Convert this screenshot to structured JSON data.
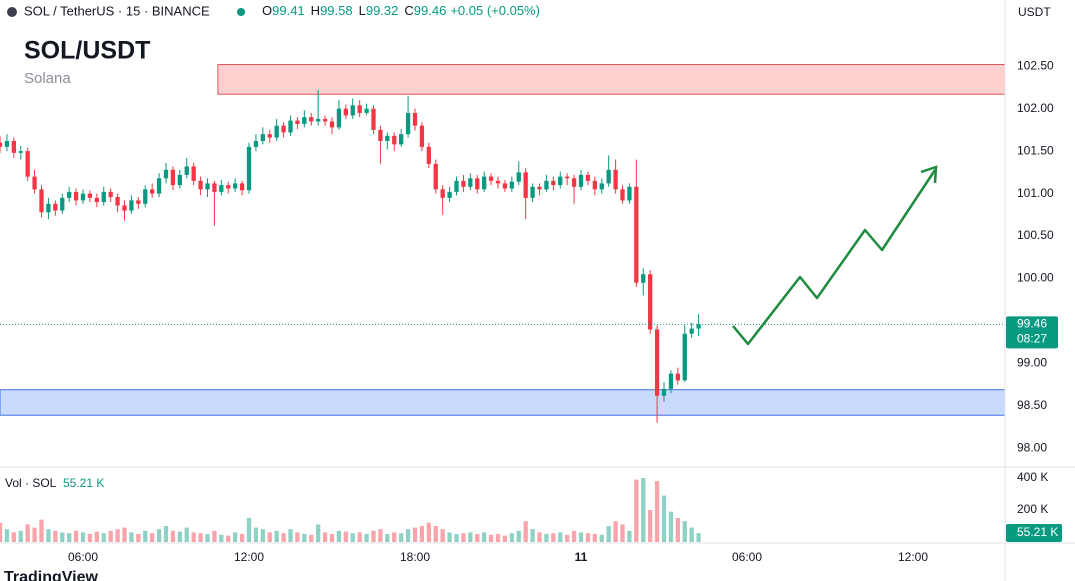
{
  "header": {
    "symbol": "SOL / TetherUS · 15 · BINANCE",
    "ohlc": [
      {
        "label": "O",
        "value": 99.41
      },
      {
        "label": "H",
        "value": 99.58
      },
      {
        "label": "L",
        "value": 99.32
      },
      {
        "label": "C",
        "value": 99.46
      }
    ],
    "change": "+0.05 (+0.05%)"
  },
  "chart_data": {
    "type": "candlestick",
    "title": "SOL/USDT",
    "subtitle": "Solana",
    "currency": "USDT",
    "up_color": "#089981",
    "down_color": "#f23645",
    "grid": false,
    "xlim": [
      0,
      145.3
    ],
    "xticks": [
      {
        "value": 12,
        "label": "06:00"
      },
      {
        "value": 36,
        "label": "12:00"
      },
      {
        "value": 60,
        "label": "18:00"
      },
      {
        "value": 84,
        "label": "11"
      },
      {
        "value": 108,
        "label": "06:00"
      },
      {
        "value": 132,
        "label": "12:00"
      }
    ],
    "ylim": [
      97.78,
      103.28
    ],
    "yticks": [
      {
        "value": 98,
        "label": "98.00"
      },
      {
        "value": 98.5,
        "label": "98.50"
      },
      {
        "value": 99,
        "label": "99.00"
      },
      {
        "value": 100,
        "label": "100.00"
      },
      {
        "value": 100.5,
        "label": "100.50"
      },
      {
        "value": 101,
        "label": "101.00"
      },
      {
        "value": 101.5,
        "label": "101.50"
      },
      {
        "value": 102,
        "label": "102.00"
      },
      {
        "value": 102.5,
        "label": "102.50"
      }
    ],
    "last_price": {
      "value": 99.46,
      "countdown": "08:27"
    },
    "zones": [
      {
        "from": 102.17,
        "to": 102.52,
        "start": 31.5,
        "fill": "#ffd0d0",
        "stroke": "#e05560"
      },
      {
        "from": 98.39,
        "to": 98.69,
        "start": 0,
        "fill": "#c8dbff",
        "stroke": "#3f6fe0"
      }
    ],
    "candles": [
      [
        101.6,
        101.68,
        101.48,
        101.55
      ],
      [
        101.55,
        101.7,
        101.5,
        101.62
      ],
      [
        101.62,
        101.66,
        101.42,
        101.48
      ],
      [
        101.48,
        101.56,
        101.4,
        101.5
      ],
      [
        101.5,
        101.54,
        101.15,
        101.2
      ],
      [
        101.2,
        101.28,
        101.0,
        101.05
      ],
      [
        101.05,
        101.1,
        100.72,
        100.78
      ],
      [
        100.78,
        100.95,
        100.7,
        100.88
      ],
      [
        100.88,
        100.92,
        100.74,
        100.8
      ],
      [
        100.8,
        101.0,
        100.76,
        100.95
      ],
      [
        100.95,
        101.08,
        100.9,
        101.02
      ],
      [
        101.02,
        101.06,
        100.86,
        100.92
      ],
      [
        100.92,
        101.05,
        100.88,
        101.0
      ],
      [
        101.0,
        101.04,
        100.9,
        100.95
      ],
      [
        100.95,
        101.0,
        100.84,
        100.9
      ],
      [
        100.9,
        101.08,
        100.86,
        101.02
      ],
      [
        101.02,
        101.06,
        100.9,
        100.96
      ],
      [
        100.96,
        101.0,
        100.78,
        100.86
      ],
      [
        100.86,
        100.92,
        100.68,
        100.8
      ],
      [
        100.8,
        100.98,
        100.76,
        100.92
      ],
      [
        100.92,
        100.96,
        100.82,
        100.88
      ],
      [
        100.88,
        101.1,
        100.84,
        101.05
      ],
      [
        101.05,
        101.12,
        100.95,
        101.0
      ],
      [
        101.0,
        101.24,
        100.96,
        101.18
      ],
      [
        101.18,
        101.36,
        101.12,
        101.28
      ],
      [
        101.28,
        101.32,
        101.04,
        101.1
      ],
      [
        101.1,
        101.28,
        101.06,
        101.22
      ],
      [
        101.22,
        101.42,
        101.18,
        101.32
      ],
      [
        101.32,
        101.36,
        101.1,
        101.15
      ],
      [
        101.15,
        101.2,
        100.98,
        101.05
      ],
      [
        101.05,
        101.18,
        100.96,
        101.12
      ],
      [
        101.12,
        101.15,
        100.62,
        101.02
      ],
      [
        101.02,
        101.16,
        100.98,
        101.1
      ],
      [
        101.1,
        101.14,
        101.0,
        101.06
      ],
      [
        101.06,
        101.18,
        101.02,
        101.12
      ],
      [
        101.12,
        101.15,
        100.98,
        101.04
      ],
      [
        101.04,
        101.6,
        101.0,
        101.55
      ],
      [
        101.55,
        101.7,
        101.5,
        101.62
      ],
      [
        101.62,
        101.78,
        101.58,
        101.7
      ],
      [
        101.7,
        101.75,
        101.6,
        101.66
      ],
      [
        101.66,
        101.88,
        101.62,
        101.8
      ],
      [
        101.8,
        101.84,
        101.66,
        101.72
      ],
      [
        101.72,
        101.92,
        101.68,
        101.86
      ],
      [
        101.86,
        101.9,
        101.76,
        101.82
      ],
      [
        101.82,
        101.98,
        101.78,
        101.9
      ],
      [
        101.9,
        101.95,
        101.8,
        101.85
      ],
      [
        101.85,
        102.22,
        101.8,
        101.88
      ],
      [
        101.88,
        101.92,
        101.8,
        101.85
      ],
      [
        101.85,
        101.9,
        101.7,
        101.78
      ],
      [
        101.78,
        102.1,
        101.75,
        102.0
      ],
      [
        102.0,
        102.05,
        101.88,
        101.92
      ],
      [
        101.92,
        102.12,
        101.88,
        102.04
      ],
      [
        102.04,
        102.1,
        101.9,
        101.95
      ],
      [
        101.95,
        102.06,
        101.92,
        102.0
      ],
      [
        102.0,
        102.04,
        101.7,
        101.75
      ],
      [
        101.75,
        101.8,
        101.35,
        101.62
      ],
      [
        101.62,
        101.72,
        101.52,
        101.68
      ],
      [
        101.68,
        101.72,
        101.5,
        101.58
      ],
      [
        101.58,
        101.76,
        101.55,
        101.7
      ],
      [
        101.7,
        102.15,
        101.66,
        101.95
      ],
      [
        101.95,
        102.0,
        101.74,
        101.8
      ],
      [
        101.8,
        101.84,
        101.5,
        101.55
      ],
      [
        101.55,
        101.6,
        101.3,
        101.35
      ],
      [
        101.35,
        101.4,
        101.0,
        101.05
      ],
      [
        101.05,
        101.1,
        100.75,
        100.95
      ],
      [
        100.95,
        101.08,
        100.9,
        101.02
      ],
      [
        101.02,
        101.2,
        100.98,
        101.15
      ],
      [
        101.15,
        101.22,
        101.02,
        101.08
      ],
      [
        101.08,
        101.24,
        101.04,
        101.18
      ],
      [
        101.18,
        101.22,
        101.0,
        101.05
      ],
      [
        101.05,
        101.26,
        101.02,
        101.2
      ],
      [
        101.2,
        101.24,
        101.1,
        101.15
      ],
      [
        101.15,
        101.2,
        101.06,
        101.12
      ],
      [
        101.12,
        101.16,
        101.02,
        101.06
      ],
      [
        101.06,
        101.2,
        101.02,
        101.14
      ],
      [
        101.14,
        101.38,
        101.1,
        101.25
      ],
      [
        101.25,
        101.3,
        100.7,
        100.95
      ],
      [
        100.95,
        101.12,
        100.9,
        101.08
      ],
      [
        101.08,
        101.12,
        100.98,
        101.05
      ],
      [
        101.05,
        101.22,
        101.02,
        101.15
      ],
      [
        101.15,
        101.2,
        101.04,
        101.1
      ],
      [
        101.1,
        101.26,
        101.06,
        101.2
      ],
      [
        101.2,
        101.24,
        101.1,
        101.18
      ],
      [
        101.18,
        101.22,
        100.88,
        101.08
      ],
      [
        101.08,
        101.28,
        101.04,
        101.22
      ],
      [
        101.22,
        101.26,
        101.1,
        101.15
      ],
      [
        101.15,
        101.2,
        100.98,
        101.05
      ],
      [
        101.05,
        101.18,
        101.0,
        101.12
      ],
      [
        101.12,
        101.45,
        101.08,
        101.28
      ],
      [
        101.28,
        101.4,
        101.0,
        101.05
      ],
      [
        101.05,
        101.1,
        100.88,
        100.92
      ],
      [
        100.92,
        101.12,
        100.88,
        101.08
      ],
      [
        101.08,
        101.4,
        99.9,
        99.95
      ],
      [
        99.95,
        100.12,
        99.8,
        100.05
      ],
      [
        100.05,
        100.1,
        99.35,
        99.4
      ],
      [
        99.4,
        99.45,
        98.3,
        98.62
      ],
      [
        98.62,
        98.78,
        98.55,
        98.7
      ],
      [
        98.7,
        98.92,
        98.65,
        98.88
      ],
      [
        98.88,
        98.95,
        98.75,
        98.8
      ],
      [
        98.8,
        99.45,
        98.78,
        99.35
      ],
      [
        99.35,
        99.48,
        99.3,
        99.41
      ],
      [
        99.41,
        99.58,
        99.32,
        99.46
      ]
    ],
    "volume": {
      "label": "Vol · SOL",
      "last_label": "55.21 K",
      "ylim": [
        0,
        468750
      ],
      "yticks": [
        {
          "value": 200000,
          "label": "200 K"
        },
        {
          "value": 400000,
          "label": "400 K"
        }
      ],
      "values": [
        120000,
        80000,
        60000,
        70000,
        110000,
        90000,
        140000,
        80000,
        70000,
        60000,
        55000,
        70000,
        60000,
        50000,
        65000,
        55000,
        70000,
        80000,
        90000,
        60000,
        50000,
        70000,
        55000,
        80000,
        100000,
        70000,
        65000,
        90000,
        60000,
        55000,
        50000,
        70000,
        45000,
        40000,
        60000,
        50000,
        150000,
        90000,
        80000,
        60000,
        70000,
        55000,
        80000,
        60000,
        50000,
        45000,
        110000,
        60000,
        50000,
        70000,
        65000,
        55000,
        60000,
        50000,
        70000,
        80000,
        50000,
        60000,
        55000,
        80000,
        90000,
        100000,
        120000,
        100000,
        80000,
        60000,
        50000,
        55000,
        60000,
        50000,
        60000,
        45000,
        50000,
        40000,
        55000,
        70000,
        130000,
        80000,
        60000,
        50000,
        55000,
        60000,
        45000,
        70000,
        60000,
        55000,
        50000,
        45000,
        100000,
        130000,
        110000,
        70000,
        390000,
        400000,
        200000,
        380000,
        290000,
        190000,
        150000,
        130000,
        90000,
        55210
      ]
    }
  },
  "footer": {
    "brand": "TradingView"
  }
}
